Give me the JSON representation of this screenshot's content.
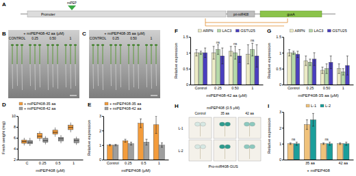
{
  "chart_data": [
    {
      "type": "box",
      "categories": [
        "C",
        "0.25",
        "0.5",
        "1"
      ],
      "x_label": "miPEP408 (μM)",
      "y_label": "Fresh weight (mg)",
      "ylim": [
        2,
        10
      ],
      "yticks": [
        2,
        4,
        6,
        8,
        10
      ],
      "legend": "top",
      "series": [
        {
          "name": "+ miPEP408-35 aa",
          "color": "#f39c3c",
          "values": [
            [
              4.6,
              5.0,
              5.3,
              5.6,
              6.0
            ],
            [
              5.4,
              5.9,
              6.3,
              6.8,
              7.2
            ],
            [
              6.2,
              6.7,
              7.0,
              7.4,
              7.9
            ],
            [
              7.0,
              7.5,
              7.9,
              8.3,
              8.8
            ]
          ]
        },
        {
          "name": "+ miPEP408-42 aa",
          "color": "#9e9e9e",
          "values": [
            [
              4.5,
              4.9,
              5.2,
              5.5,
              6.0
            ],
            [
              4.8,
              5.2,
              5.5,
              5.9,
              6.3
            ],
            [
              5.0,
              5.4,
              5.8,
              6.1,
              6.5
            ],
            [
              4.7,
              5.1,
              5.5,
              5.8,
              6.2
            ]
          ]
        }
      ]
    },
    {
      "type": "bar",
      "categories": [
        "Control",
        "0.25",
        "0.5",
        "1"
      ],
      "x_label": "miPEP408 (μM)",
      "y_label": "Relative expression",
      "ylim": [
        0,
        3
      ],
      "yticks": [
        0,
        1,
        2,
        3
      ],
      "legend": "top",
      "series": [
        {
          "name": "+ miPEP408-35 aa",
          "color": "#f39c3c",
          "values": [
            1,
            1.3,
            2.5,
            2.4
          ],
          "errors": [
            0.05,
            0.1,
            0.3,
            0.6
          ]
        },
        {
          "name": "+ miPEP408-42 aa",
          "color": "#9e9e9e",
          "values": [
            1,
            1.1,
            1.2,
            1.0
          ],
          "errors": [
            0.05,
            0.1,
            0.2,
            0.15
          ]
        }
      ]
    },
    {
      "type": "bar",
      "categories": [
        "Control",
        "0.25",
        "0.50",
        "1"
      ],
      "x_label": "miPEP408-42 aa (μM)",
      "y_label": "Relative expression",
      "ylim": [
        0,
        1.5
      ],
      "yticks": [
        0,
        0.5,
        1,
        1.5
      ],
      "legend": "top",
      "series": [
        {
          "name": "ARPN",
          "color": "#ecebc6",
          "values": [
            1,
            1,
            1.05,
            0.95
          ],
          "errors": [
            0.1,
            0.2,
            0.15,
            0.3
          ]
        },
        {
          "name": "LAC3",
          "color": "#b5d8a8",
          "values": [
            1,
            1.1,
            1.0,
            1.1
          ],
          "errors": [
            0.05,
            0.15,
            0.2,
            0.2
          ]
        },
        {
          "name": "GSTU25",
          "color": "#4a3fbf",
          "values": [
            1,
            0.9,
            0.9,
            0.9
          ],
          "errors": [
            0.15,
            0.25,
            0.2,
            0.35
          ]
        }
      ],
      "annotations": [
        {
          "text": "ns",
          "category": 1
        },
        {
          "text": "ns",
          "category": 2
        },
        {
          "text": "ns",
          "category": 3
        }
      ]
    },
    {
      "type": "bar",
      "categories": [
        "Control",
        "0.25",
        "0.50",
        "1"
      ],
      "x_label": "miPEP408-35 aa (μM)",
      "y_label": "Relative expression",
      "ylim": [
        0,
        1.5
      ],
      "yticks": [
        0,
        0.5,
        1,
        1.5
      ],
      "legend": "top",
      "series": [
        {
          "name": "ARPN",
          "color": "#ecebc6",
          "values": [
            1,
            0.75,
            0.45,
            0.5
          ],
          "errors": [
            0.1,
            0.15,
            0.1,
            0.15
          ]
        },
        {
          "name": "LAC3",
          "color": "#b5d8a8",
          "values": [
            1,
            0.7,
            0.5,
            0.4
          ],
          "errors": [
            0.05,
            0.1,
            0.15,
            0.1
          ]
        },
        {
          "name": "GSTU25",
          "color": "#4a3fbf",
          "values": [
            0.95,
            0.8,
            0.7,
            0.6
          ],
          "errors": [
            0.1,
            0.2,
            0.2,
            0.3
          ]
        }
      ]
    },
    {
      "type": "bar",
      "categories": [
        null,
        "35 aa",
        null,
        "42 aa"
      ],
      "x_label": "+ miPEP408",
      "y_label": "Relative expression",
      "ylim": [
        0,
        3
      ],
      "yticks": [
        0,
        1,
        2,
        3
      ],
      "legend": "top",
      "series": [
        {
          "name": "L-1",
          "color": "#f0c27b",
          "values": [
            1,
            2.2,
            1,
            1
          ],
          "errors": [
            0.05,
            0.3,
            0.05,
            0.05
          ]
        },
        {
          "name": "L-2",
          "color": "#1b9e9a",
          "values": [
            1,
            2.5,
            1,
            1
          ],
          "errors": [
            0.1,
            0.4,
            0.1,
            0.1
          ]
        }
      ],
      "annotations": [
        {
          "text": "ns",
          "category": 0
        },
        {
          "text": "ns",
          "category": 2
        }
      ]
    }
  ],
  "figure": {
    "panel_labels": [
      "A",
      "B",
      "C",
      "D",
      "E",
      "F",
      "G",
      "H",
      "I"
    ],
    "A": {
      "labels": [
        "miPEP",
        "Promoter",
        "pri-miR408",
        "gusA"
      ]
    },
    "B": {
      "title": "+ miPEP408-42 aa (μM)",
      "columns": [
        "CONTROL",
        "0.25",
        "0.50",
        "1"
      ]
    },
    "C": {
      "title": "+ miPEP408-35 aa (μM)",
      "columns": [
        "CONTROL",
        "0.25",
        "0.50",
        "1"
      ]
    },
    "H": {
      "title": "miPEP408 (0.5 μM)",
      "columns": [
        "Control",
        "35 aa",
        "42 aa"
      ],
      "rows": [
        "L-1",
        "L-2"
      ],
      "caption": "Pro-miR408-GUS"
    }
  }
}
